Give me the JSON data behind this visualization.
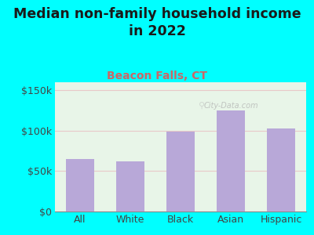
{
  "title": "Median non-family household income\nin 2022",
  "subtitle": "Beacon Falls, CT",
  "categories": [
    "All",
    "White",
    "Black",
    "Asian",
    "Hispanic"
  ],
  "values": [
    65000,
    62000,
    99000,
    125000,
    103000
  ],
  "bar_color": "#b8a8d8",
  "background_outer": "#00ffff",
  "background_chart": "#e8f5e8",
  "title_color": "#1a1a1a",
  "subtitle_color": "#cc6666",
  "tick_label_color": "#444444",
  "ytick_label_color": "#444444",
  "ylim": [
    0,
    160000
  ],
  "yticks": [
    0,
    50000,
    100000,
    150000
  ],
  "ytick_labels": [
    "$0",
    "$50k",
    "$100k",
    "$150k"
  ],
  "grid_color": "#e8c8c8",
  "watermark": "City-Data.com",
  "title_fontsize": 12.5,
  "subtitle_fontsize": 10,
  "tick_fontsize": 9
}
